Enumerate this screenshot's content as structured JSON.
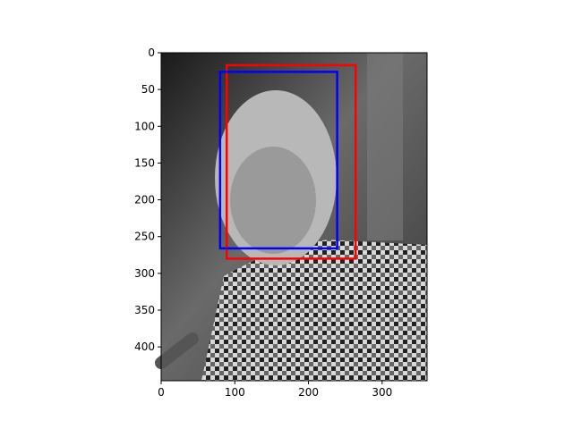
{
  "chart_data": {
    "type": "image",
    "xlim": [
      0,
      361
    ],
    "ylim": [
      446,
      0
    ],
    "xticks": [
      0,
      100,
      200,
      300
    ],
    "yticks": [
      0,
      50,
      100,
      150,
      200,
      250,
      300,
      350,
      400
    ],
    "boxes": [
      {
        "color": "#ff0000",
        "x": [
          89,
          264
        ],
        "y": [
          17,
          280
        ]
      },
      {
        "color": "#0000ff",
        "x": [
          80,
          239
        ],
        "y": [
          26,
          266
        ]
      }
    ]
  }
}
